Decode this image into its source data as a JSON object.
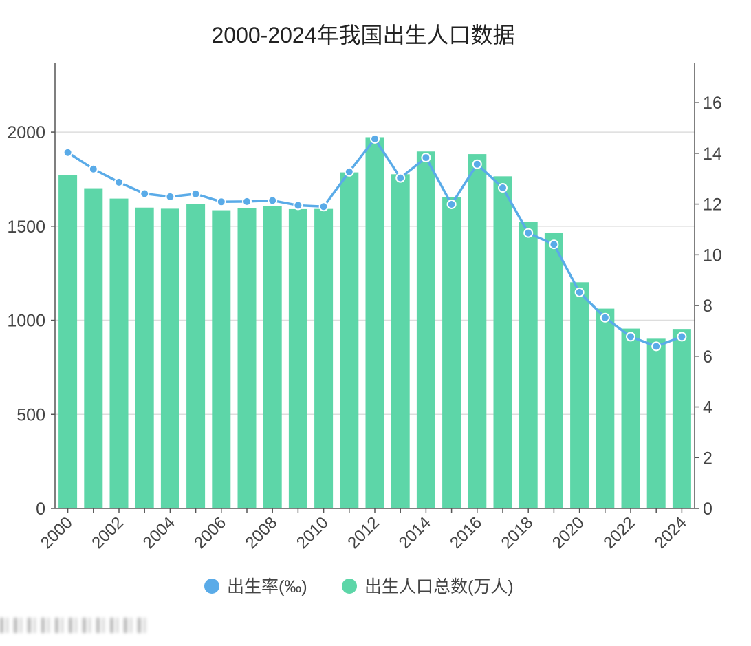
{
  "chart_data": {
    "type": "bar+line",
    "title": "2000-2024年我国出生人口数据",
    "categories": [
      "2000",
      "2001",
      "2002",
      "2003",
      "2004",
      "2005",
      "2006",
      "2007",
      "2008",
      "2009",
      "2010",
      "2011",
      "2012",
      "2013",
      "2014",
      "2015",
      "2016",
      "2017",
      "2018",
      "2019",
      "2020",
      "2021",
      "2022",
      "2023",
      "2024"
    ],
    "x_tick_labels": [
      "2000",
      "2002",
      "2004",
      "2006",
      "2008",
      "2010",
      "2012",
      "2014",
      "2016",
      "2018",
      "2020",
      "2022",
      "2024"
    ],
    "series": [
      {
        "name": "出生人口总数(万人)",
        "type": "bar",
        "axis": "left",
        "color": "#5dd6a8",
        "values": [
          1771,
          1702,
          1647,
          1599,
          1593,
          1617,
          1585,
          1595,
          1608,
          1591,
          1592,
          1786,
          1973,
          1776,
          1897,
          1655,
          1883,
          1765,
          1523,
          1465,
          1202,
          1062,
          956,
          902,
          954
        ]
      },
      {
        "name": "出生率(‰)",
        "type": "line",
        "axis": "right",
        "color": "#5aabe8",
        "values": [
          14.03,
          13.38,
          12.86,
          12.41,
          12.29,
          12.4,
          12.09,
          12.1,
          12.14,
          11.95,
          11.9,
          13.27,
          14.57,
          13.03,
          13.83,
          11.99,
          13.57,
          12.64,
          10.86,
          10.41,
          8.52,
          7.52,
          6.77,
          6.39,
          6.77
        ]
      }
    ],
    "y_left": {
      "ylim": [
        0,
        2366
      ],
      "ticks": [
        0,
        500,
        1000,
        1500,
        2000
      ]
    },
    "y_right": {
      "ylim": [
        0,
        17.55
      ],
      "ticks": [
        0,
        2,
        4,
        6,
        8,
        10,
        12,
        14,
        16
      ]
    },
    "grid": "horizontal",
    "legend": "bottom"
  }
}
